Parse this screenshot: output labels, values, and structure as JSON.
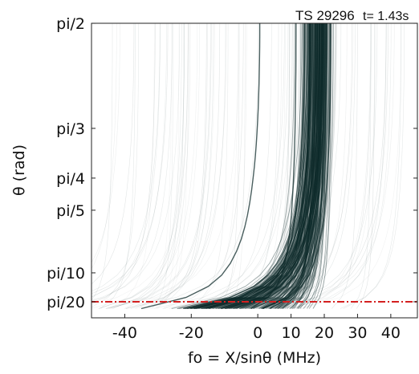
{
  "chart_data": {
    "type": "heatmap",
    "annotation": {
      "shot": "TS 29296",
      "time": "t= 1.43s"
    },
    "xlabel": "fo = X/sinθ (MHz)",
    "ylabel": "θ (rad)",
    "xlim": [
      -50,
      48
    ],
    "x_ticks": [
      {
        "value": -40,
        "label": "-40"
      },
      {
        "value": -20,
        "label": "-20"
      },
      {
        "value": 0,
        "label": "0"
      },
      {
        "value": 10,
        "label": "10"
      },
      {
        "value": 20,
        "label": "20"
      },
      {
        "value": 30,
        "label": "30"
      },
      {
        "value": 40,
        "label": "40"
      }
    ],
    "y_ticks": [
      {
        "value": 0.1571,
        "label": "pi/20"
      },
      {
        "value": 0.3142,
        "label": "pi/10"
      },
      {
        "value": 0.6283,
        "label": "pi/5"
      },
      {
        "value": 0.7854,
        "label": "pi/4"
      },
      {
        "value": 1.0472,
        "label": "pi/3"
      },
      {
        "value": 1.5708,
        "label": "pi/2"
      }
    ],
    "reference_line": {
      "y_value": 0.1571,
      "style": "dash-dot",
      "color": "#d42020"
    },
    "colormap": [
      "#ffffff",
      "#0d2a2a"
    ],
    "intensity_peak_x": [
      10,
      25
    ],
    "grid": false
  }
}
